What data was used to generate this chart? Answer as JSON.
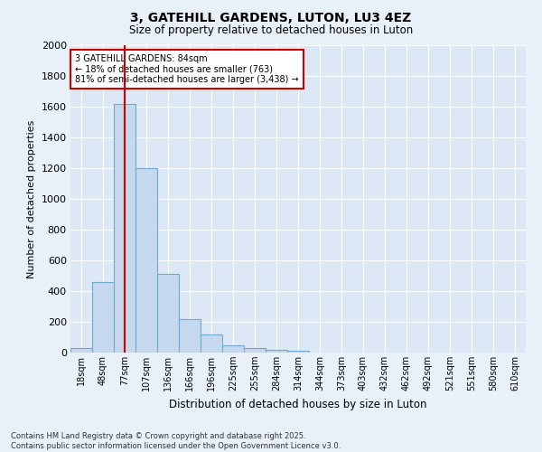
{
  "title": "3, GATEHILL GARDENS, LUTON, LU3 4EZ",
  "subtitle": "Size of property relative to detached houses in Luton",
  "xlabel": "Distribution of detached houses by size in Luton",
  "ylabel": "Number of detached properties",
  "bar_color": "#c5d8ee",
  "bar_edge_color": "#6fa8d0",
  "background_color": "#dce8f5",
  "grid_color": "#ffffff",
  "fig_bg_color": "#e8f0f8",
  "vline_x_idx": 2,
  "vline_color": "#cc0000",
  "annotation_text": "3 GATEHILL GARDENS: 84sqm\n← 18% of detached houses are smaller (763)\n81% of semi-detached houses are larger (3,438) →",
  "annotation_box_color": "#cc0000",
  "categories": [
    "18sqm",
    "48sqm",
    "77sqm",
    "107sqm",
    "136sqm",
    "166sqm",
    "196sqm",
    "225sqm",
    "255sqm",
    "284sqm",
    "314sqm",
    "344sqm",
    "373sqm",
    "403sqm",
    "432sqm",
    "462sqm",
    "492sqm",
    "521sqm",
    "551sqm",
    "580sqm",
    "610sqm"
  ],
  "values": [
    30,
    460,
    1620,
    1200,
    510,
    220,
    120,
    45,
    30,
    20,
    10,
    0,
    0,
    0,
    0,
    0,
    0,
    0,
    0,
    0,
    0
  ],
  "ylim": [
    0,
    2000
  ],
  "yticks": [
    0,
    200,
    400,
    600,
    800,
    1000,
    1200,
    1400,
    1600,
    1800,
    2000
  ],
  "footnote": "Contains HM Land Registry data © Crown copyright and database right 2025.\nContains public sector information licensed under the Open Government Licence v3.0.",
  "figsize": [
    6.0,
    5.0
  ],
  "dpi": 100
}
